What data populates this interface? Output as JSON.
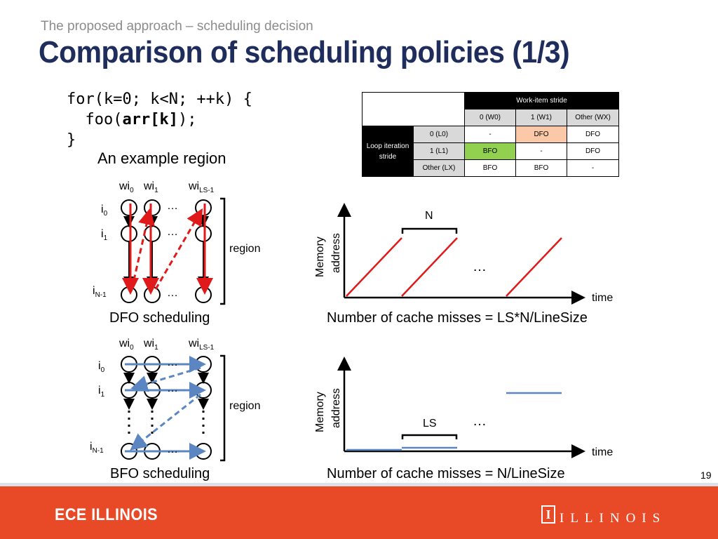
{
  "header": {
    "subtitle": "The proposed approach – scheduling decision",
    "title": "Comparison of scheduling policies (1/3)"
  },
  "code": {
    "line1": "for(k=0; k<N; ++k) {",
    "line2_pre": "  foo(",
    "line2_bold": "arr[k]",
    "line2_post": ");",
    "line3": "}",
    "caption": "An example region"
  },
  "stride_table": {
    "col_group": "Work-item stride",
    "row_group": "Loop iteration stride",
    "col_headers": [
      "0 (W0)",
      "1 (W1)",
      "Other (WX)"
    ],
    "rows": [
      {
        "label": "0 (L0)",
        "cells": [
          "-",
          "DFO",
          "DFO"
        ]
      },
      {
        "label": "1 (L1)",
        "cells": [
          "BFO",
          "-",
          "DFO"
        ]
      },
      {
        "label": "Other (LX)",
        "cells": [
          "BFO",
          "BFO",
          "-"
        ]
      }
    ]
  },
  "dfo": {
    "wi0": "wi",
    "wi0_sub": "0",
    "wi1": "wi",
    "wi1_sub": "1",
    "wils": "wi",
    "wils_sub": "LS-1",
    "i0": "i",
    "i0_sub": "0",
    "i1": "i",
    "i1_sub": "1",
    "in": "i",
    "in_sub": "N-1",
    "region": "region",
    "caption": "DFO scheduling"
  },
  "bfo": {
    "wi0": "wi",
    "wi0_sub": "0",
    "wi1": "wi",
    "wi1_sub": "1",
    "wils": "wi",
    "wils_sub": "LS-1",
    "i0": "i",
    "i0_sub": "0",
    "i1": "i",
    "i1_sub": "1",
    "in": "i",
    "in_sub": "N-1",
    "region": "region",
    "caption": "BFO scheduling"
  },
  "plot_top": {
    "y_label1": "Memory",
    "y_label2": "address",
    "x_label": "time",
    "brace_label": "N",
    "ellipsis": "…",
    "caption": "Number of cache misses = LS*N/LineSize"
  },
  "plot_bottom": {
    "y_label1": "Memory",
    "y_label2": "address",
    "x_label": "time",
    "brace_label": "LS",
    "ellipsis": "…",
    "caption": "Number of cache misses = N/LineSize"
  },
  "page_number": "19",
  "footer": {
    "left": "ECE ILLINOIS",
    "right": "ILLINOIS",
    "logo_letter": "I"
  },
  "colors": {
    "title": "#1f2d5c",
    "footer": "#e84a27",
    "dfo_arrow": "#e01a1a",
    "bfo_arrow": "#5b86c2",
    "orange_cell": "#fbc9a8",
    "green_cell": "#92d050"
  }
}
